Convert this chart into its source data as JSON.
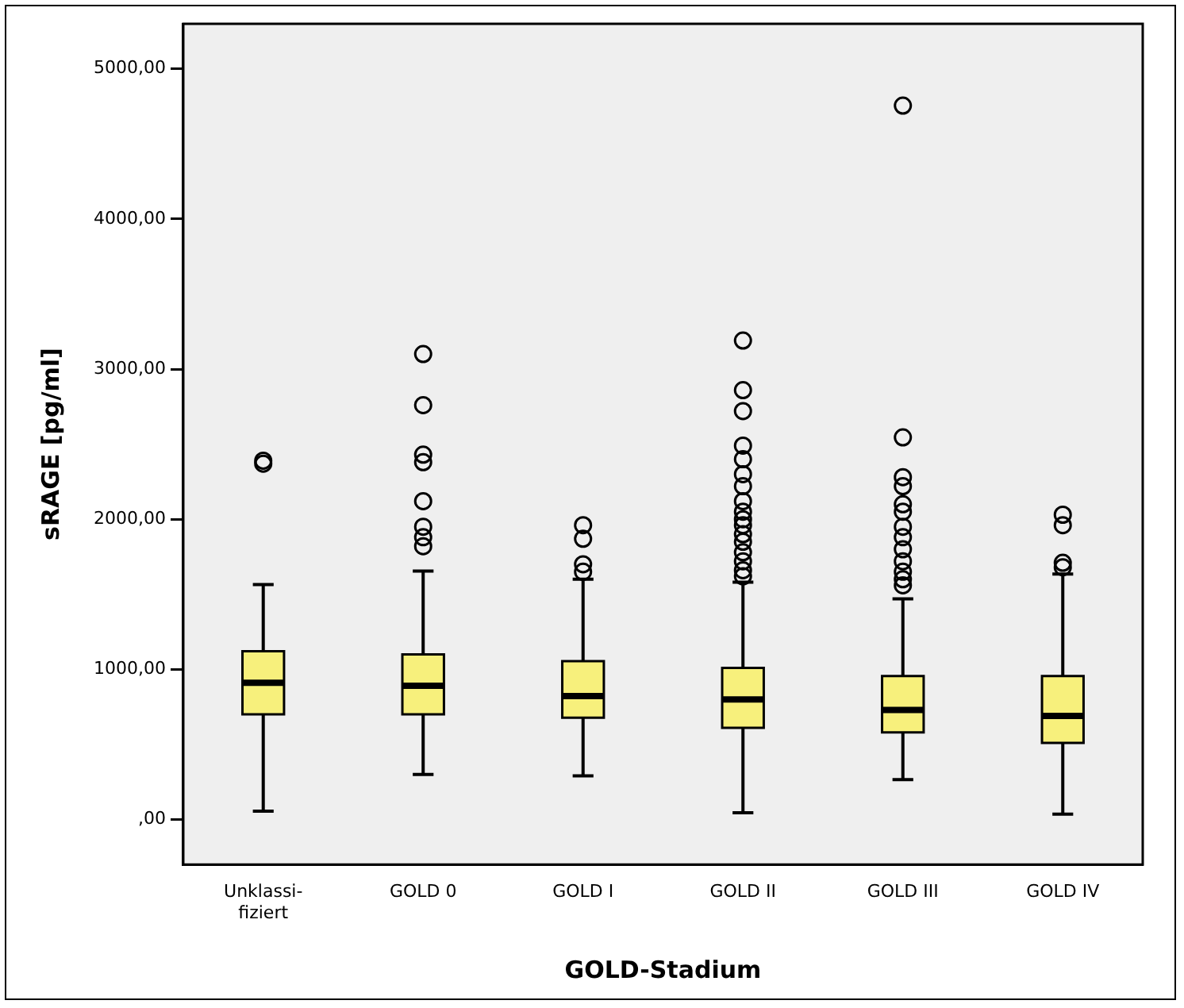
{
  "chart_data": {
    "type": "box",
    "xlabel": "GOLD-Stadium",
    "ylabel": "sRAGE [pg/ml]",
    "categories": [
      "Unklassi-fiziert",
      "GOLD 0",
      "GOLD I",
      "GOLD II",
      "GOLD III",
      "GOLD IV"
    ],
    "color": "#f7f07c",
    "boxes": [
      {
        "low": 55,
        "q1": 700,
        "median": 910,
        "q3": 1120,
        "high": 1565,
        "outliers": [
          2370,
          2390
        ]
      },
      {
        "low": 300,
        "q1": 700,
        "median": 890,
        "q3": 1100,
        "high": 1655,
        "outliers": [
          1820,
          1880,
          1950,
          2120,
          2380,
          2430,
          2760,
          3100
        ]
      },
      {
        "low": 290,
        "q1": 678,
        "median": 822,
        "q3": 1055,
        "high": 1600,
        "outliers": [
          1650,
          1700,
          1870,
          1960
        ]
      },
      {
        "low": 45,
        "q1": 611,
        "median": 800,
        "q3": 1010,
        "high": 1580,
        "outliers": [
          1620,
          1660,
          1720,
          1780,
          1850,
          1900,
          1960,
          2000,
          2050,
          2120,
          2220,
          2300,
          2400,
          2490,
          2720,
          2860,
          3190
        ]
      },
      {
        "low": 265,
        "q1": 580,
        "median": 730,
        "q3": 955,
        "high": 1470,
        "outliers": [
          1560,
          1600,
          1650,
          1720,
          1800,
          1880,
          1950,
          2050,
          2100,
          2220,
          2280,
          2545,
          4755
        ]
      },
      {
        "low": 35,
        "q1": 510,
        "median": 690,
        "q3": 955,
        "high": 1635,
        "outliers": [
          1680,
          1710,
          1960,
          2030
        ]
      }
    ],
    "ylim": [
      -300,
      5300
    ],
    "yticks": [
      {
        "value": 0,
        "label": ",00"
      },
      {
        "value": 1000,
        "label": "1000,00"
      },
      {
        "value": 2000,
        "label": "2000,00"
      },
      {
        "value": 3000,
        "label": "3000,00"
      },
      {
        "value": 4000,
        "label": "4000,00"
      },
      {
        "value": 5000,
        "label": "5000,00"
      }
    ],
    "grid": false,
    "legend": false
  }
}
